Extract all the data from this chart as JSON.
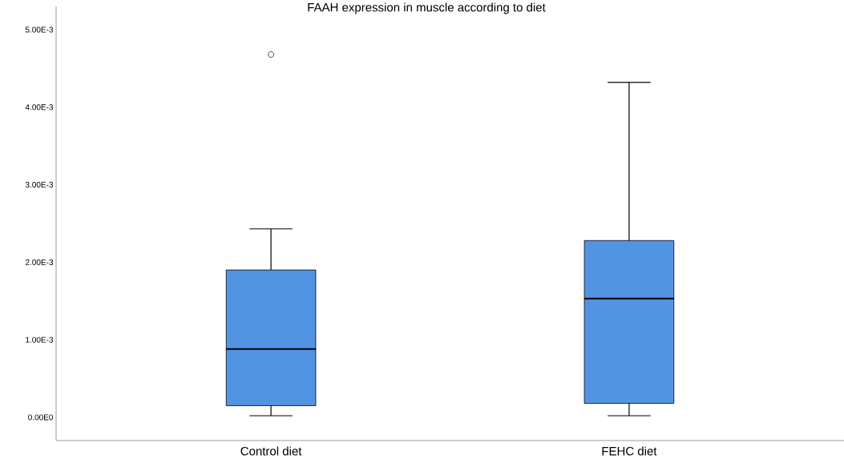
{
  "chart_data": {
    "type": "box",
    "title": "FAAH expression in muscle according to diet",
    "categories": [
      "Control diet",
      "FEHC diet"
    ],
    "color": "#5294e2",
    "boxes": [
      {
        "low": 2e-05,
        "q1": 0.00015,
        "median": 0.00088,
        "q3": 0.0019,
        "high": 0.00243,
        "outliers": [
          0.00468
        ]
      },
      {
        "low": 2e-05,
        "q1": 0.00018,
        "median": 0.00153,
        "q3": 0.00228,
        "high": 0.00432
      }
    ],
    "ylim": [
      -0.0003,
      0.0053
    ],
    "yticks": [
      {
        "value": 0,
        "label": "0.00E0"
      },
      {
        "value": 0.001,
        "label": "1.00E-3"
      },
      {
        "value": 0.002,
        "label": "2.00E-3"
      },
      {
        "value": 0.003,
        "label": "3.00E-3"
      },
      {
        "value": 0.004,
        "label": "4.00E-3"
      },
      {
        "value": 0.005,
        "label": "5.00E-3"
      }
    ],
    "grid": false
  }
}
